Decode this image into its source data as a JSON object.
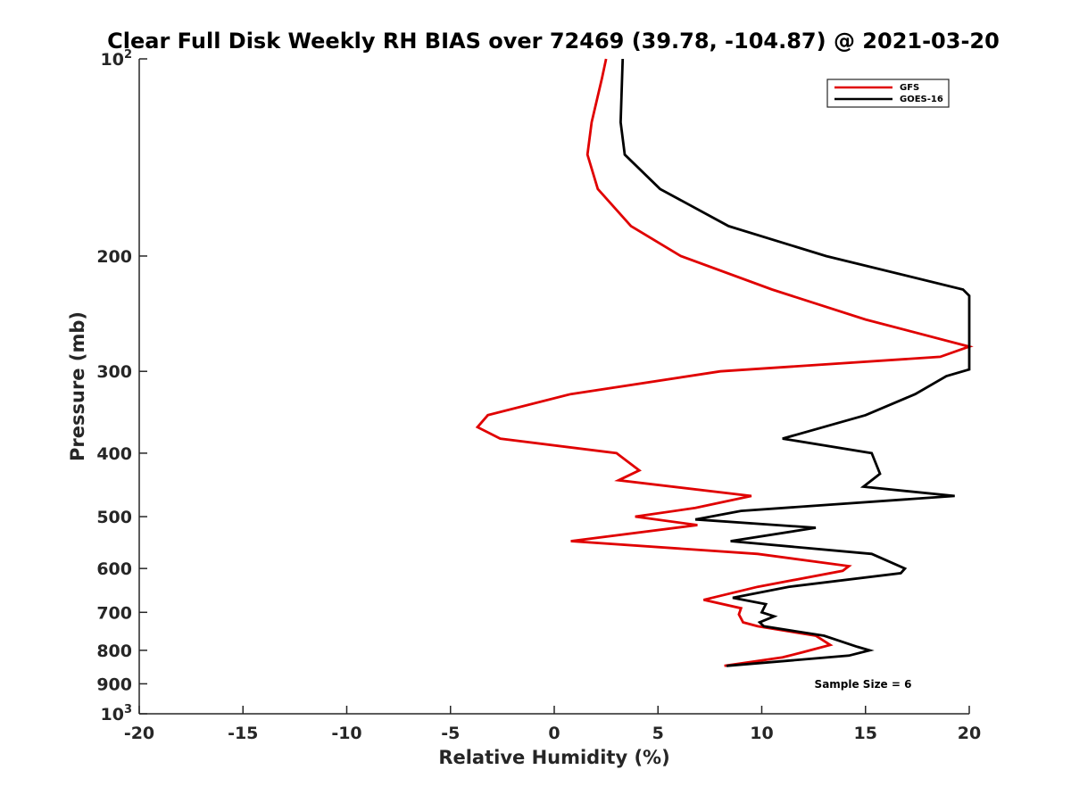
{
  "chart_data": {
    "type": "line",
    "title": "Clear Full Disk Weekly RH BIAS over 72469 (39.78, -104.87) @ 2021-03-20",
    "xlabel": "Relative Humidity (%)",
    "ylabel": "Pressure (mb)",
    "xlim": [
      -20,
      20
    ],
    "ylim": [
      100,
      1000
    ],
    "y_scale": "log",
    "y_reversed": true,
    "x_ticks": [
      "-20",
      "-15",
      "-10",
      "-5",
      "0",
      "5",
      "10",
      "15",
      "20"
    ],
    "y_ticks": [
      {
        "value": 100,
        "base": "10",
        "exp": "2"
      },
      {
        "value": 200,
        "label": "200"
      },
      {
        "value": 300,
        "label": "300"
      },
      {
        "value": 400,
        "label": "400"
      },
      {
        "value": 500,
        "label": "500"
      },
      {
        "value": 600,
        "label": "600"
      },
      {
        "value": 700,
        "label": "700"
      },
      {
        "value": 800,
        "label": "800"
      },
      {
        "value": 900,
        "label": "900"
      },
      {
        "value": 1000,
        "base": "10",
        "exp": "3"
      }
    ],
    "grid": false,
    "legend_position": "top-right",
    "annotation": "Sample Size = 6",
    "series": [
      {
        "name": "GFS",
        "color": "#e00000",
        "points": [
          [
            2.5,
            100
          ],
          [
            2.3,
            107
          ],
          [
            1.8,
            125
          ],
          [
            1.6,
            140
          ],
          [
            2.1,
            158
          ],
          [
            3.7,
            180
          ],
          [
            6.1,
            200
          ],
          [
            10.5,
            225
          ],
          [
            15.0,
            250
          ],
          [
            20.0,
            275
          ],
          [
            18.6,
            285
          ],
          [
            8.0,
            300
          ],
          [
            0.8,
            325
          ],
          [
            -3.2,
            350
          ],
          [
            -3.7,
            365
          ],
          [
            -2.6,
            380
          ],
          [
            3.0,
            400
          ],
          [
            4.1,
            425
          ],
          [
            3.1,
            440
          ],
          [
            9.5,
            465
          ],
          [
            6.8,
            485
          ],
          [
            3.9,
            500
          ],
          [
            6.9,
            515
          ],
          [
            0.8,
            545
          ],
          [
            9.8,
            570
          ],
          [
            14.2,
            595
          ],
          [
            13.9,
            605
          ],
          [
            9.8,
            640
          ],
          [
            7.2,
            670
          ],
          [
            9.0,
            690
          ],
          [
            8.9,
            705
          ],
          [
            9.1,
            725
          ],
          [
            9.8,
            735
          ],
          [
            12.6,
            760
          ],
          [
            13.3,
            785
          ],
          [
            12.0,
            805
          ],
          [
            11.0,
            820
          ],
          [
            8.2,
            845
          ]
        ]
      },
      {
        "name": "GOES-16",
        "color": "#000000",
        "points": [
          [
            3.3,
            100
          ],
          [
            3.2,
            125
          ],
          [
            3.4,
            140
          ],
          [
            5.1,
            158
          ],
          [
            8.4,
            180
          ],
          [
            13.1,
            200
          ],
          [
            19.7,
            225
          ],
          [
            20.0,
            230
          ],
          [
            20.0,
            298
          ],
          [
            18.9,
            305
          ],
          [
            17.4,
            325
          ],
          [
            15.0,
            350
          ],
          [
            11.0,
            380
          ],
          [
            15.3,
            400
          ],
          [
            15.7,
            430
          ],
          [
            14.9,
            450
          ],
          [
            19.3,
            465
          ],
          [
            9.0,
            490
          ],
          [
            6.8,
            505
          ],
          [
            12.6,
            520
          ],
          [
            8.5,
            545
          ],
          [
            15.3,
            570
          ],
          [
            16.9,
            600
          ],
          [
            16.7,
            610
          ],
          [
            11.3,
            640
          ],
          [
            8.6,
            665
          ],
          [
            10.2,
            680
          ],
          [
            10.0,
            700
          ],
          [
            10.6,
            710
          ],
          [
            9.9,
            725
          ],
          [
            10.1,
            735
          ],
          [
            13.0,
            760
          ],
          [
            14.6,
            790
          ],
          [
            15.2,
            800
          ],
          [
            14.2,
            815
          ],
          [
            8.3,
            845
          ]
        ]
      }
    ]
  }
}
